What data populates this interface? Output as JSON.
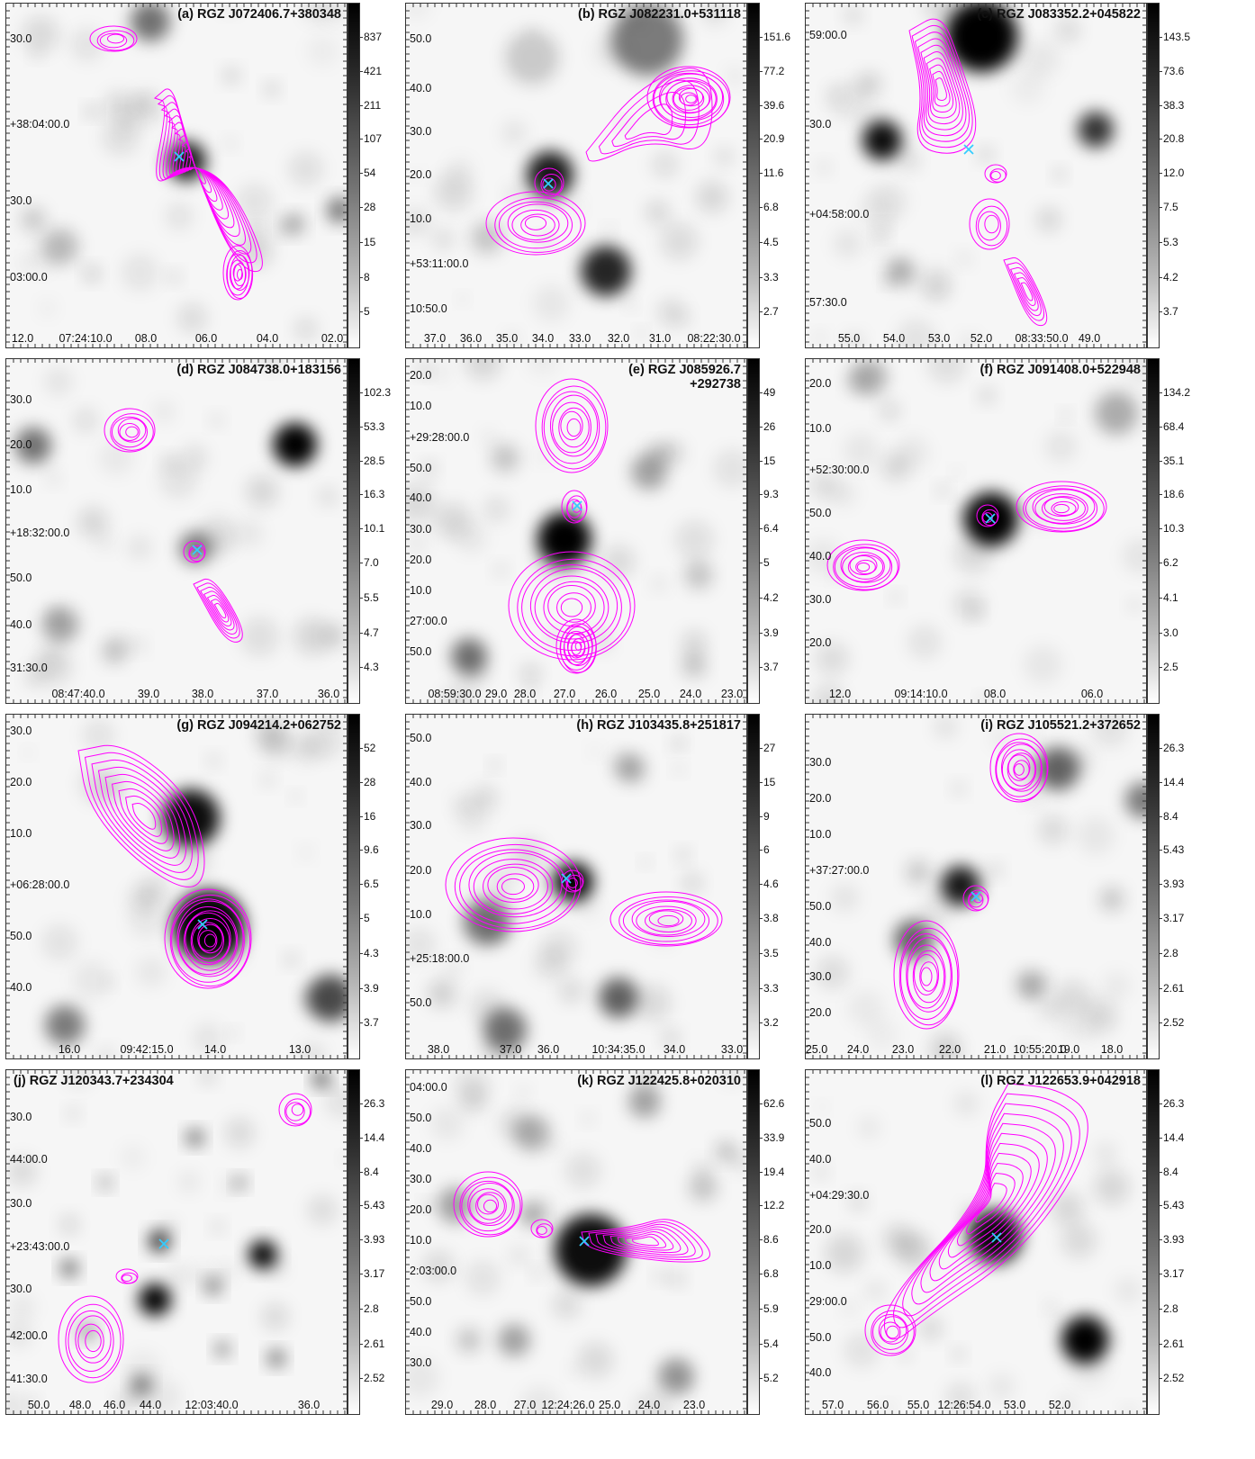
{
  "colors": {
    "contour": "#ff00ff",
    "host_marker": "#33ccff",
    "frame": "#333333",
    "background": "#ffffff"
  },
  "icons": {
    "host_marker": "x-cross-icon"
  },
  "panels": [
    {
      "title": "(a) RGZ J072406.7+380348",
      "y_labels": [
        "30.0",
        "+38:04:00.0",
        "30.0",
        "03:00.0"
      ],
      "x_labels": [
        "12.0",
        "07:24:10.0",
        "08.0",
        "06.0",
        "04.0",
        "02.0"
      ],
      "colorbar": [
        "837",
        "421",
        "211",
        "107",
        "54",
        "28",
        "15",
        "8",
        "5"
      ]
    },
    {
      "title": "(b) RGZ J082231.0+531118",
      "y_labels": [
        "50.0",
        "40.0",
        "30.0",
        "20.0",
        "10.0",
        "+53:11:00.0",
        "10:50.0"
      ],
      "x_labels": [
        "37.0",
        "36.0",
        "35.0",
        "34.0",
        "33.0",
        "32.0",
        "31.0",
        "08:22:30.0"
      ],
      "colorbar": [
        "151.6",
        "77.2",
        "39.6",
        "20.9",
        "11.6",
        "6.8",
        "4.5",
        "3.3",
        "2.7"
      ]
    },
    {
      "title": "(c) RGZ J083352.2+045822",
      "y_labels": [
        "59:00.0",
        "30.0",
        "+04:58:00.0",
        "57:30.0"
      ],
      "x_labels": [
        "55.0",
        "54.0",
        "53.0",
        "52.0",
        "08:33:50.0",
        "49.0"
      ],
      "colorbar": [
        "143.5",
        "73.6",
        "38.3",
        "20.8",
        "12.0",
        "7.5",
        "5.3",
        "4.2",
        "3.7"
      ]
    },
    {
      "title": "(d) RGZ J084738.0+183156",
      "y_labels": [
        "30.0",
        "20.0",
        "10.0",
        "+18:32:00.0",
        "50.0",
        "40.0",
        "31:30.0"
      ],
      "x_labels": [
        "08:47:40.0",
        "39.0",
        "38.0",
        "37.0",
        "36.0"
      ],
      "colorbar": [
        "102.3",
        "53.3",
        "28.5",
        "16.3",
        "10.1",
        "7.0",
        "5.5",
        "4.7",
        "4.3"
      ]
    },
    {
      "title": "(e) RGZ J085926.7\n+292738",
      "y_labels": [
        "20.0",
        "10.0",
        "+29:28:00.0",
        "50.0",
        "40.0",
        "30.0",
        "20.0",
        "10.0",
        "27:00.0",
        "50.0"
      ],
      "x_labels": [
        "08:59:30.0",
        "29.0",
        "28.0",
        "27.0",
        "26.0",
        "25.0",
        "24.0",
        "23.0"
      ],
      "colorbar": [
        "49",
        "26",
        "15",
        "9.3",
        "6.4",
        "5",
        "4.2",
        "3.9",
        "3.7"
      ]
    },
    {
      "title": "(f) RGZ J091408.0+522948",
      "y_labels": [
        "20.0",
        "10.0",
        "+52:30:00.0",
        "50.0",
        "40.0",
        "30.0",
        "20.0"
      ],
      "x_labels": [
        "12.0",
        "09:14:10.0",
        "08.0",
        "06.0"
      ],
      "colorbar": [
        "134.2",
        "68.4",
        "35.1",
        "18.6",
        "10.3",
        "6.2",
        "4.1",
        "3.0",
        "2.5"
      ]
    },
    {
      "title": "(g) RGZ J094214.2+062752",
      "y_labels": [
        "30.0",
        "20.0",
        "10.0",
        "+06:28:00.0",
        "50.0",
        "40.0"
      ],
      "x_labels": [
        "16.0",
        "09:42:15.0",
        "14.0",
        "13.0"
      ],
      "colorbar": [
        "52",
        "28",
        "16",
        "9.6",
        "6.5",
        "5",
        "4.3",
        "3.9",
        "3.7"
      ]
    },
    {
      "title": "(h) RGZ J103435.8+251817",
      "y_labels": [
        "50.0",
        "40.0",
        "30.0",
        "20.0",
        "10.0",
        "+25:18:00.0",
        "50.0"
      ],
      "x_labels": [
        "38.0",
        "37.0",
        "36.0",
        "10:34:35.0",
        "34.0",
        "33.0"
      ],
      "colorbar": [
        "27",
        "15",
        "9",
        "6",
        "4.6",
        "3.8",
        "3.5",
        "3.3",
        "3.2"
      ]
    },
    {
      "title": "(i) RGZ J105521.2+372652",
      "y_labels": [
        "30.0",
        "20.0",
        "10.0",
        "+37:27:00.0",
        "50.0",
        "40.0",
        "30.0",
        "20.0"
      ],
      "x_labels": [
        "25.0",
        "24.0",
        "23.0",
        "22.0",
        "21.0",
        "10:55:20.0",
        "19.0",
        "18.0"
      ],
      "colorbar": [
        "26.3",
        "14.4",
        "8.4",
        "5.43",
        "3.93",
        "3.17",
        "2.8",
        "2.61",
        "2.52"
      ]
    },
    {
      "title": "(j) RGZ J120343.7+234304",
      "y_labels": [
        "30.0",
        "44:00.0",
        "30.0",
        "+23:43:00.0",
        "30.0",
        "42:00.0",
        "41:30.0"
      ],
      "x_labels": [
        "50.0",
        "48.0",
        "46.0",
        "44.0",
        "12:03:40.0",
        "36.0"
      ],
      "colorbar": [
        "26.3",
        "14.4",
        "8.4",
        "5.43",
        "3.93",
        "3.17",
        "2.8",
        "2.61",
        "2.52"
      ]
    },
    {
      "title": "(k) RGZ J122425.8+020310",
      "y_labels": [
        "04:00.0",
        "50.0",
        "40.0",
        "30.0",
        "20.0",
        "10.0",
        "2:03:00.0",
        "50.0",
        "40.0",
        "30.0"
      ],
      "x_labels": [
        "29.0",
        "28.0",
        "27.0",
        "12:24:26.0",
        "25.0",
        "24.0",
        "23.0"
      ],
      "colorbar": [
        "62.6",
        "33.9",
        "19.4",
        "12.2",
        "8.6",
        "6.8",
        "5.9",
        "5.4",
        "5.2"
      ]
    },
    {
      "title": "(l) RGZ J122653.9+042918",
      "y_labels": [
        "50.0",
        "40.0",
        "+04:29:30.0",
        "20.0",
        "10.0",
        "29:00.0",
        "50.0",
        "40.0"
      ],
      "x_labels": [
        "57.0",
        "56.0",
        "55.0",
        "12:26:54.0",
        "53.0",
        "52.0"
      ],
      "colorbar": [
        "26.3",
        "14.4",
        "8.4",
        "5.43",
        "3.93",
        "3.17",
        "2.8",
        "2.61",
        "2.52"
      ]
    }
  ]
}
